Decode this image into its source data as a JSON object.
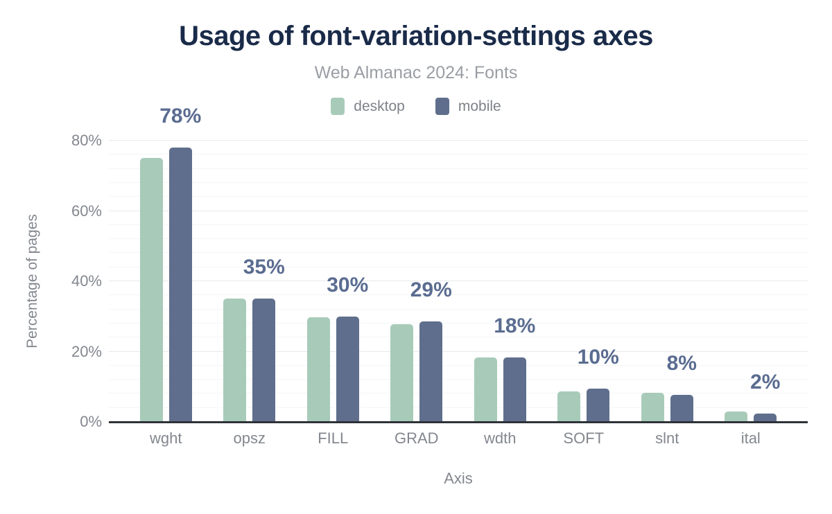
{
  "colors": {
    "title_navy": "#1a2b49",
    "subtitle_gray": "#9a9ea4",
    "legend_text_gray": "#7d828a",
    "axis_text_gray": "#83878e",
    "bar_label_slate": "#5a6c90",
    "desktop_green": "#a8cbb9",
    "mobile_slate": "#5f6e8c",
    "axis_line": "#2e3237",
    "grid_major": "#e7e9eb",
    "grid_minor": "#f4f5f7",
    "background": "#ffffff"
  },
  "chart_data": {
    "type": "bar",
    "title": "Usage of font-variation-settings axes",
    "subtitle": "Web Almanac 2024: Fonts",
    "xlabel": "Axis",
    "ylabel": "Percentage of pages",
    "categories": [
      "wght",
      "opsz",
      "FILL",
      "GRAD",
      "wdth",
      "SOFT",
      "slnt",
      "ital"
    ],
    "series": [
      {
        "name": "desktop",
        "color": "#a8cbb9",
        "values": [
          75,
          35,
          29.7,
          27.7,
          18.3,
          8.7,
          8.3,
          3
        ]
      },
      {
        "name": "mobile",
        "color": "#5f6e8c",
        "values": [
          78,
          35,
          30,
          28.6,
          18.3,
          9.5,
          7.6,
          2.3
        ]
      }
    ],
    "bar_labels": [
      "78%",
      "35%",
      "30%",
      "29%",
      "18%",
      "10%",
      "8%",
      "2%"
    ],
    "bar_label_anchor": "above mobile bar",
    "ylim": [
      0,
      80
    ],
    "ytick_values": [
      0,
      20,
      40,
      60,
      80
    ],
    "ytick_labels": [
      "0%",
      "20%",
      "40%",
      "60%",
      "80%"
    ],
    "grid": "on",
    "grid_minor_step": 4,
    "grid_major_step": 20,
    "legend_position": "top-center"
  }
}
